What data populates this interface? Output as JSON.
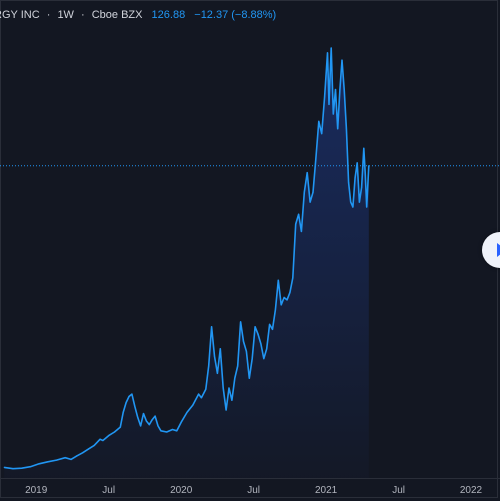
{
  "header": {
    "symbol_name": "RGY INC",
    "interval": "1W",
    "exchange": "Cboe BZX",
    "last_price": "126.88",
    "change": "−12.37 (−8.88%)",
    "accent_color": "#2196f3"
  },
  "colors": {
    "background": "#131722",
    "line": "#2196f3",
    "price_line": "#2196f3",
    "axis_text": "#b2b5be"
  },
  "controls": {
    "scroll_icon": "play-right-icon"
  },
  "chart_data": {
    "type": "area",
    "title": "",
    "xlabel": "",
    "ylabel": "",
    "x_tick_labels": [
      "2019",
      "Jul",
      "2020",
      "Jul",
      "2021",
      "Jul",
      "2022"
    ],
    "x_ticks": [
      2019.0,
      2019.5,
      2020.0,
      2020.5,
      2021.0,
      2021.5,
      2022.0
    ],
    "x_range": [
      2018.75,
      2022.2
    ],
    "y_range": [
      0,
      175
    ],
    "last_price": 126.88,
    "grid": false,
    "legend": "none",
    "series": [
      {
        "values": [
          [
            2018.78,
            3.5
          ],
          [
            2018.84,
            3.0
          ],
          [
            2018.9,
            3.2
          ],
          [
            2018.96,
            3.8
          ],
          [
            2019.02,
            5.0
          ],
          [
            2019.08,
            5.8
          ],
          [
            2019.14,
            6.5
          ],
          [
            2019.2,
            7.5
          ],
          [
            2019.24,
            6.8
          ],
          [
            2019.28,
            8.2
          ],
          [
            2019.32,
            9.5
          ],
          [
            2019.36,
            11.0
          ],
          [
            2019.4,
            12.5
          ],
          [
            2019.44,
            15.0
          ],
          [
            2019.46,
            14.5
          ],
          [
            2019.5,
            16.5
          ],
          [
            2019.54,
            18.0
          ],
          [
            2019.58,
            20.0
          ],
          [
            2019.6,
            26.0
          ],
          [
            2019.62,
            30.0
          ],
          [
            2019.64,
            32.5
          ],
          [
            2019.66,
            33.5
          ],
          [
            2019.68,
            28.5
          ],
          [
            2019.7,
            24.0
          ],
          [
            2019.72,
            20.5
          ],
          [
            2019.74,
            25.5
          ],
          [
            2019.76,
            22.5
          ],
          [
            2019.78,
            21.0
          ],
          [
            2019.8,
            23.0
          ],
          [
            2019.82,
            24.5
          ],
          [
            2019.84,
            20.5
          ],
          [
            2019.86,
            18.5
          ],
          [
            2019.9,
            18.0
          ],
          [
            2019.94,
            19.0
          ],
          [
            2019.97,
            18.5
          ],
          [
            2020.0,
            22.0
          ],
          [
            2020.04,
            26.0
          ],
          [
            2020.08,
            29.0
          ],
          [
            2020.12,
            33.5
          ],
          [
            2020.14,
            32.0
          ],
          [
            2020.17,
            35.5
          ],
          [
            2020.19,
            45.0
          ],
          [
            2020.21,
            61.0
          ],
          [
            2020.23,
            49.0
          ],
          [
            2020.25,
            42.0
          ],
          [
            2020.27,
            52.0
          ],
          [
            2020.29,
            36.0
          ],
          [
            2020.31,
            27.0
          ],
          [
            2020.33,
            36.0
          ],
          [
            2020.35,
            31.0
          ],
          [
            2020.37,
            40.0
          ],
          [
            2020.39,
            45.0
          ],
          [
            2020.41,
            63.0
          ],
          [
            2020.43,
            55.0
          ],
          [
            2020.45,
            51.0
          ],
          [
            2020.47,
            40.0
          ],
          [
            2020.49,
            48.0
          ],
          [
            2020.51,
            61.0
          ],
          [
            2020.53,
            58.0
          ],
          [
            2020.55,
            54.0
          ],
          [
            2020.57,
            48.0
          ],
          [
            2020.59,
            52.0
          ],
          [
            2020.61,
            62.0
          ],
          [
            2020.63,
            60.0
          ],
          [
            2020.65,
            68.0
          ],
          [
            2020.67,
            80.0
          ],
          [
            2020.69,
            70.0
          ],
          [
            2020.71,
            73.0
          ],
          [
            2020.73,
            72.0
          ],
          [
            2020.75,
            75.0
          ],
          [
            2020.77,
            81.0
          ],
          [
            2020.79,
            103.0
          ],
          [
            2020.81,
            107.0
          ],
          [
            2020.83,
            100.0
          ],
          [
            2020.85,
            116.0
          ],
          [
            2020.87,
            124.0
          ],
          [
            2020.89,
            112.0
          ],
          [
            2020.91,
            116.0
          ],
          [
            2020.93,
            130.0
          ],
          [
            2020.95,
            145.0
          ],
          [
            2020.97,
            140.0
          ],
          [
            2020.99,
            155.0
          ],
          [
            2021.01,
            173.0
          ],
          [
            2021.02,
            152.0
          ],
          [
            2021.035,
            175.0
          ],
          [
            2021.05,
            148.0
          ],
          [
            2021.065,
            158.0
          ],
          [
            2021.08,
            142.0
          ],
          [
            2021.095,
            158.0
          ],
          [
            2021.11,
            170.0
          ],
          [
            2021.125,
            158.0
          ],
          [
            2021.14,
            142.0
          ],
          [
            2021.155,
            120.0
          ],
          [
            2021.17,
            112.0
          ],
          [
            2021.185,
            110.0
          ],
          [
            2021.2,
            122.0
          ],
          [
            2021.215,
            128.0
          ],
          [
            2021.23,
            112.0
          ],
          [
            2021.245,
            118.0
          ],
          [
            2021.26,
            134.0
          ],
          [
            2021.27,
            124.0
          ],
          [
            2021.28,
            110.0
          ],
          [
            2021.295,
            126.88
          ]
        ]
      }
    ]
  }
}
